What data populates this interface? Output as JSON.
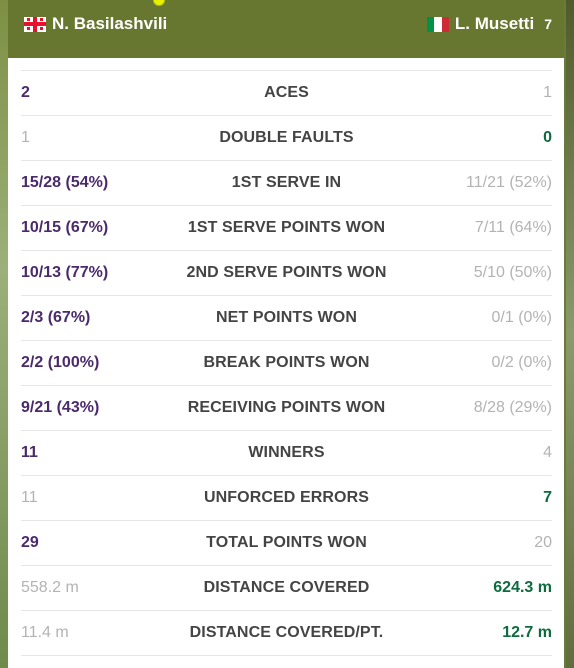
{
  "header": {
    "player1": {
      "name": "N. Basilashvili",
      "flag": "georgia-flag-icon"
    },
    "player2": {
      "name": "L. Musetti",
      "seed": "7",
      "flag": "italy-flag-icon"
    }
  },
  "colors": {
    "header_bg": "#67772f",
    "player1_text": "#4b2a6b",
    "player2_win": "#0d6b3e",
    "dim_text": "#b3b3b3",
    "label_text": "#444444"
  },
  "stats": [
    {
      "label": "ACES",
      "p1": "2",
      "p2": "1",
      "p1_lead": true,
      "p2_lead": false
    },
    {
      "label": "DOUBLE FAULTS",
      "p1": "1",
      "p2": "0",
      "p1_lead": false,
      "p2_lead": true
    },
    {
      "label": "1ST SERVE IN",
      "p1": "15/28 (54%)",
      "p2": "11/21 (52%)",
      "p1_lead": true,
      "p2_lead": false
    },
    {
      "label": "1ST SERVE POINTS WON",
      "p1": "10/15 (67%)",
      "p2": "7/11 (64%)",
      "p1_lead": true,
      "p2_lead": false
    },
    {
      "label": "2ND SERVE POINTS WON",
      "p1": "10/13 (77%)",
      "p2": "5/10 (50%)",
      "p1_lead": true,
      "p2_lead": false
    },
    {
      "label": "NET POINTS WON",
      "p1": "2/3 (67%)",
      "p2": "0/1 (0%)",
      "p1_lead": true,
      "p2_lead": false
    },
    {
      "label": "BREAK POINTS WON",
      "p1": "2/2 (100%)",
      "p2": "0/2 (0%)",
      "p1_lead": true,
      "p2_lead": false
    },
    {
      "label": "RECEIVING POINTS WON",
      "p1": "9/21 (43%)",
      "p2": "8/28 (29%)",
      "p1_lead": true,
      "p2_lead": false
    },
    {
      "label": "WINNERS",
      "p1": "11",
      "p2": "4",
      "p1_lead": true,
      "p2_lead": false
    },
    {
      "label": "UNFORCED ERRORS",
      "p1": "11",
      "p2": "7",
      "p1_lead": false,
      "p2_lead": true
    },
    {
      "label": "TOTAL POINTS WON",
      "p1": "29",
      "p2": "20",
      "p1_lead": true,
      "p2_lead": false
    },
    {
      "label": "DISTANCE COVERED",
      "p1": "558.2 m",
      "p2": "624.3 m",
      "p1_lead": false,
      "p2_lead": true
    },
    {
      "label": "DISTANCE COVERED/PT.",
      "p1": "11.4 m",
      "p2": "12.7 m",
      "p1_lead": false,
      "p2_lead": true
    }
  ]
}
